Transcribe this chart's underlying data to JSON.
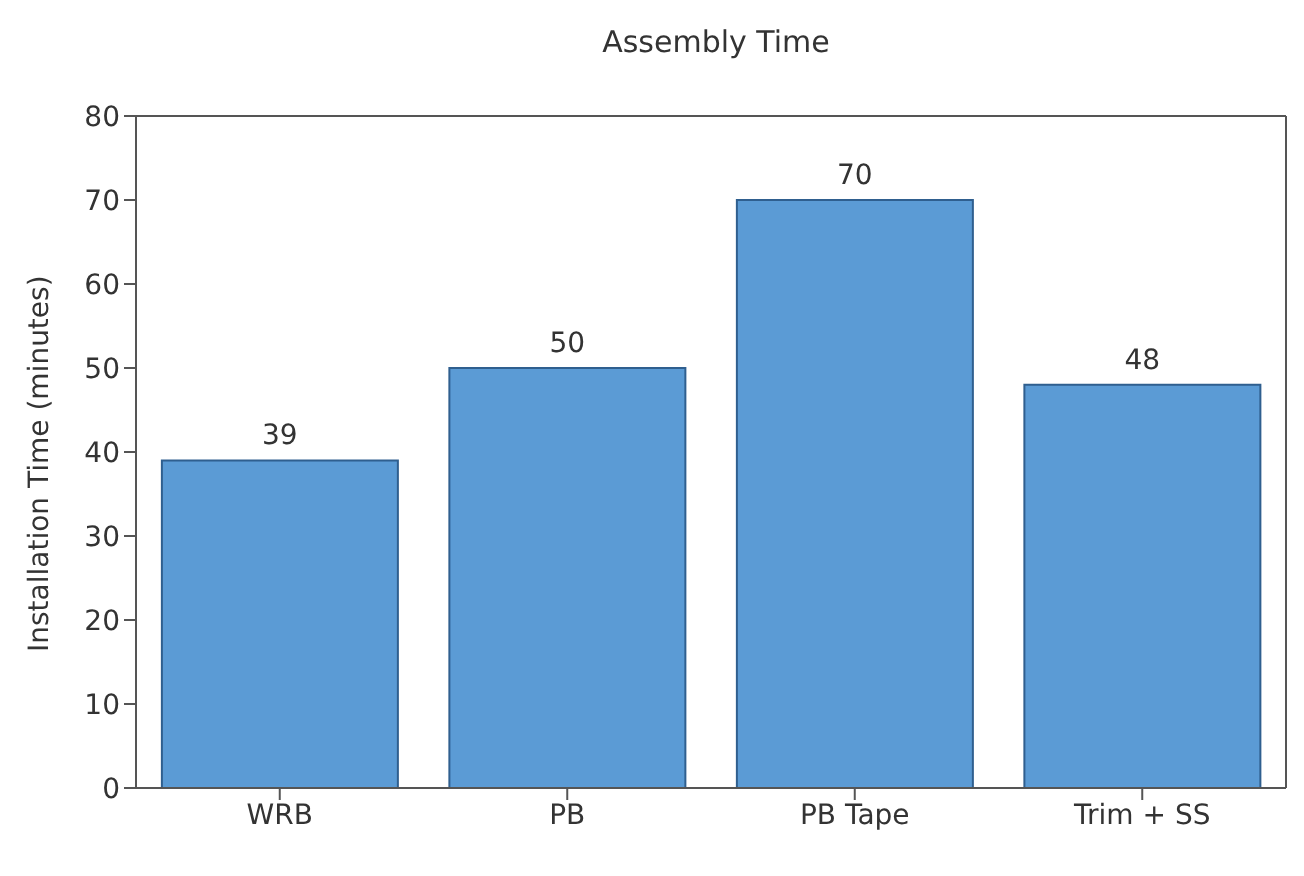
{
  "chart_data": {
    "type": "bar",
    "title": "Assembly Time",
    "ylabel": "Installation Time (minutes)",
    "categories": [
      "WRB",
      "PB",
      "PB Tape",
      "Trim + SS"
    ],
    "values": [
      39,
      50,
      70,
      48
    ],
    "color": "#5b9bd5",
    "ylim": [
      0,
      80
    ],
    "yticks": [
      0,
      10,
      20,
      30,
      40,
      50,
      60,
      70,
      80
    ],
    "grid": false,
    "data_labels": true
  }
}
